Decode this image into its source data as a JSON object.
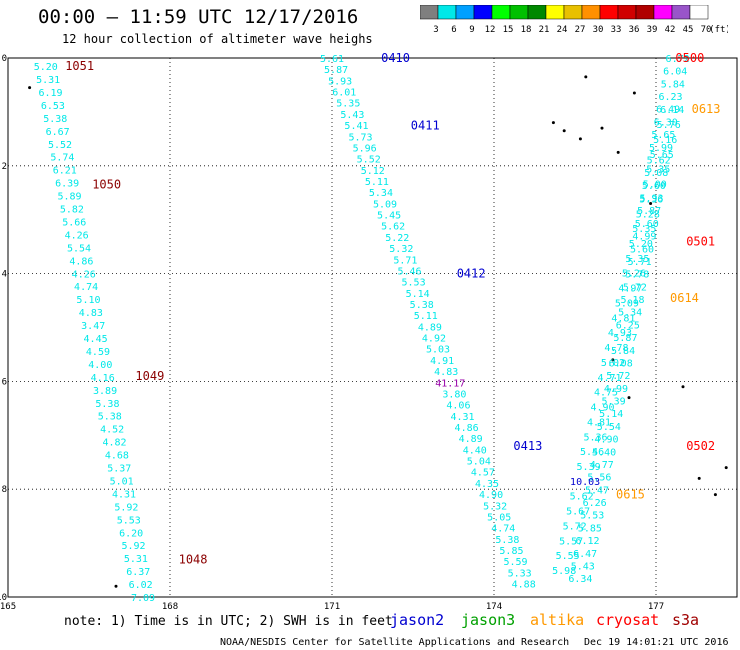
{
  "title": "00:00 – 11:59 UTC 12/17/2016",
  "subtitle": "12 hour collection of altimeter wave heighs",
  "colorbar": {
    "labels": [
      "3",
      "6",
      "9",
      "12",
      "15",
      "18",
      "21",
      "24",
      "27",
      "30",
      "33",
      "36",
      "39",
      "42",
      "45",
      "70"
    ],
    "unit": "(ft)",
    "colors": [
      "#7f7f7f",
      "#00e8e8",
      "#00a0ff",
      "#0000ff",
      "#00ff00",
      "#00c000",
      "#008800",
      "#ffff00",
      "#e8c000",
      "#ff9000",
      "#ff0000",
      "#d00000",
      "#b00000",
      "#ff00ff",
      "#9955c9",
      "#ffffff"
    ]
  },
  "axes": {
    "x_labels": [
      "165",
      "168",
      "171",
      "174",
      "177"
    ],
    "y_labels": [
      "0",
      "-2",
      "-4",
      "-6",
      "-8",
      "-10"
    ],
    "x_range": [
      165,
      178.5
    ],
    "y_range": [
      -10,
      0
    ]
  },
  "colors": {
    "swh_text": "#00e8e8",
    "time_label": "#8b0000",
    "jason2": "#0000d0",
    "jason3": "#00a000",
    "altika": "#ff9900",
    "cryosat": "#ff0000",
    "s3a": "#a00000",
    "outlier_purple": "#9900aa"
  },
  "tracks": [
    {
      "time_label": "1051",
      "time_lon": 165.8,
      "time_lat": -0.15,
      "time_color": "#8b0000",
      "start": [
        165.7,
        -0.15
      ],
      "end": [
        167.5,
        -10.0
      ],
      "values": [
        "5.20",
        "5.31",
        "6.19",
        "6.53",
        "5.38",
        "6.67",
        "5.52",
        "5.74",
        "6.21",
        "6.39",
        "5.89",
        "5.82",
        "5.66",
        "4.26",
        "5.54",
        "4.86",
        "4.26",
        "4.74",
        "5.10",
        "4.83",
        "3.47",
        "4.45",
        "4.59",
        "4.00",
        "4.16",
        "3.89",
        "5.38",
        "5.38",
        "4.52",
        "4.82",
        "4.68",
        "5.37",
        "5.01",
        "4.31",
        "5.92",
        "5.53",
        "6.20",
        "5.92",
        "5.31",
        "6.37",
        "6.02",
        "7.09"
      ]
    },
    {
      "time_label": "1050",
      "time_lon": 166.3,
      "time_lat": -2.35,
      "time_color": "#8b0000",
      "label_only": true
    },
    {
      "time_label": "1049",
      "time_lon": 167.1,
      "time_lat": -5.9,
      "time_color": "#8b0000",
      "label_only": true
    },
    {
      "time_label": "1048",
      "time_lon": 167.9,
      "time_lat": -9.3,
      "time_color": "#8b0000",
      "label_only": true
    },
    {
      "time_label": "0410",
      "time_lon": 171.65,
      "time_lat": 0.0,
      "time_color": "#0000d0",
      "start": [
        171.0,
        0.0
      ],
      "end": [
        174.55,
        -9.75
      ],
      "values": [
        "5.61",
        "5.87",
        "5.93",
        "6.01",
        "5.35",
        "5.43",
        "5.41",
        "5.73",
        "5.96",
        "5.52",
        "5.12",
        "5.11",
        "5.34",
        "5.09",
        "5.45",
        "5.62",
        "5.22",
        "5.32",
        "5.71",
        "5.46",
        "5.53",
        "5.14",
        "5.38",
        "5.11",
        "4.89",
        "4.92",
        "5.03",
        "4.91",
        "4.83",
        "41.17",
        "3.80",
        "4.06",
        "4.31",
        "4.86",
        "4.89",
        "4.40",
        "5.04",
        "4.57",
        "4.35",
        "4.90",
        "5.32",
        "5.05",
        "4.74",
        "5.38",
        "5.85",
        "5.59",
        "5.33",
        "4.88"
      ]
    },
    {
      "time_label": "0411",
      "time_lon": 172.2,
      "time_lat": -1.25,
      "time_color": "#0000d0",
      "label_only": true
    },
    {
      "time_label": "0412",
      "time_lon": 173.05,
      "time_lat": -4.0,
      "time_color": "#0000d0",
      "label_only": true
    },
    {
      "time_label": "0413",
      "time_lon": 174.1,
      "time_lat": -7.2,
      "time_color": "#0000d0",
      "label_only": true
    },
    {
      "time_label": "0500",
      "time_lon": 177.1,
      "time_lat": 0.0,
      "time_color": "#ff0000",
      "start": [
        177.4,
        0.0
      ],
      "end": [
        175.6,
        -9.65
      ],
      "values": [
        "6.72",
        "6.04",
        "5.84",
        "6.23",
        "6.49",
        "6.30",
        "5.65",
        "5.99",
        "5.62",
        "5.08",
        "5.60",
        "5.93",
        "5.87",
        "5.60",
        "4.99",
        "5.60",
        "5.71",
        "5.78",
        "5.72",
        "5.18",
        "5.34",
        "6.25",
        "5.87",
        "5.84",
        "6.08",
        "5.72",
        "4.99",
        "5.39",
        "5.14",
        "5.54",
        "4.90",
        "5.40",
        "4.77",
        "5.56",
        "5.47",
        "6.26",
        "5.53",
        "5.85",
        "6.12",
        "6.47",
        "5.43",
        "6.34"
      ]
    },
    {
      "time_label": "0501",
      "time_lon": 177.3,
      "time_lat": -3.4,
      "time_color": "#ff0000",
      "label_only": true
    },
    {
      "time_label": "0502",
      "time_lon": 177.3,
      "time_lat": -7.2,
      "time_color": "#ff0000",
      "label_only": true
    },
    {
      "time_label": "0613",
      "time_lon": 177.4,
      "time_lat": -0.95,
      "time_color": "#ff9900",
      "start": [
        177.3,
        -0.95
      ],
      "end": [
        175.3,
        -9.5
      ],
      "values": [
        "6.14",
        "5.76",
        "5.16",
        "5.65",
        "5.35",
        "5.00",
        "5.36",
        "5.28",
        "5.35",
        "5.20",
        "5.35",
        "5.26",
        "4.97",
        "5.09",
        "4.81",
        "4.93",
        "4.78",
        "5.02",
        "4.71",
        "4.75",
        "4.90",
        "4.81",
        "5.36",
        "5.46",
        "5.39",
        "10.03",
        "5.62",
        "5.67",
        "5.72",
        "5.57",
        "5.55",
        "5.98"
      ]
    },
    {
      "time_label": "0614",
      "time_lon": 177.0,
      "time_lat": -4.45,
      "time_color": "#ff9900",
      "label_only": true
    },
    {
      "time_label": "0615",
      "time_lon": 176.0,
      "time_lat": -8.1,
      "time_color": "#ff9900",
      "label_only": true
    }
  ],
  "legend": {
    "note": "note: 1) Time is in UTC; 2) SWH is in feet",
    "satellites": [
      "jason2",
      "jason3",
      "altika",
      "cryosat",
      "s3a"
    ]
  },
  "credit": "NOAA/NESDIS Center for Satellite Applications and Research",
  "timestamp": "Dec 19 14:01:21 UTC 2016"
}
